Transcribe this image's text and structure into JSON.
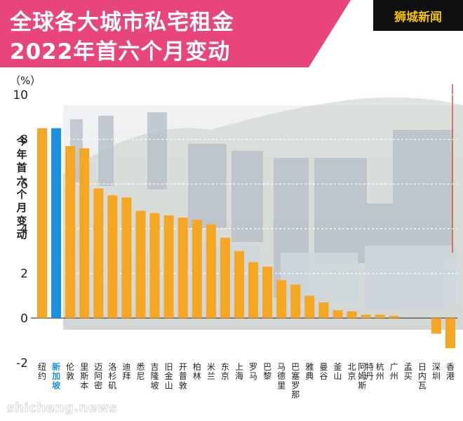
{
  "header": {
    "title_line1": "全球各大城市私宅租金",
    "title_line2": "2022年首六个月变动",
    "brand": "狮城新闻"
  },
  "watermark": "shicheng.news",
  "chart_data": {
    "type": "bar",
    "unit_label": "（%）",
    "ylabel": "今年首六个月变动",
    "ylim": [
      -2,
      10
    ],
    "yticks": [
      -2,
      0,
      2,
      4,
      6,
      8,
      10
    ],
    "grid": true,
    "highlight": "新加坡",
    "colors": {
      "bar": "#f5a623",
      "highlight": "#1f8fe0",
      "title_bg": "#e8457a",
      "brand_bg": "#111111",
      "brand_text": "#f2c200"
    },
    "categories": [
      "纽约",
      "新加坡",
      "伦敦",
      "里斯本",
      "迈阿密",
      "洛杉矶",
      "迪拜",
      "悉尼",
      "吉隆坡",
      "旧金山",
      "开普敦",
      "柏林",
      "米兰",
      "东京",
      "上海",
      "罗马",
      "巴黎",
      "马德里",
      "巴塞罗那",
      "雅典",
      "曼谷",
      "釜山",
      "北京",
      "阿姆斯特丹",
      "杭州",
      "广州",
      "孟买",
      "日内瓦",
      "深圳",
      "香港"
    ],
    "values": [
      8.5,
      8.5,
      7.7,
      7.6,
      5.8,
      5.5,
      5.4,
      4.8,
      4.7,
      4.6,
      4.5,
      4.4,
      4.2,
      3.6,
      3.0,
      2.5,
      2.3,
      1.7,
      1.5,
      1.0,
      0.7,
      0.35,
      0.3,
      0.15,
      0.15,
      0.1,
      0.0,
      0.0,
      -0.7,
      -1.35
    ]
  }
}
